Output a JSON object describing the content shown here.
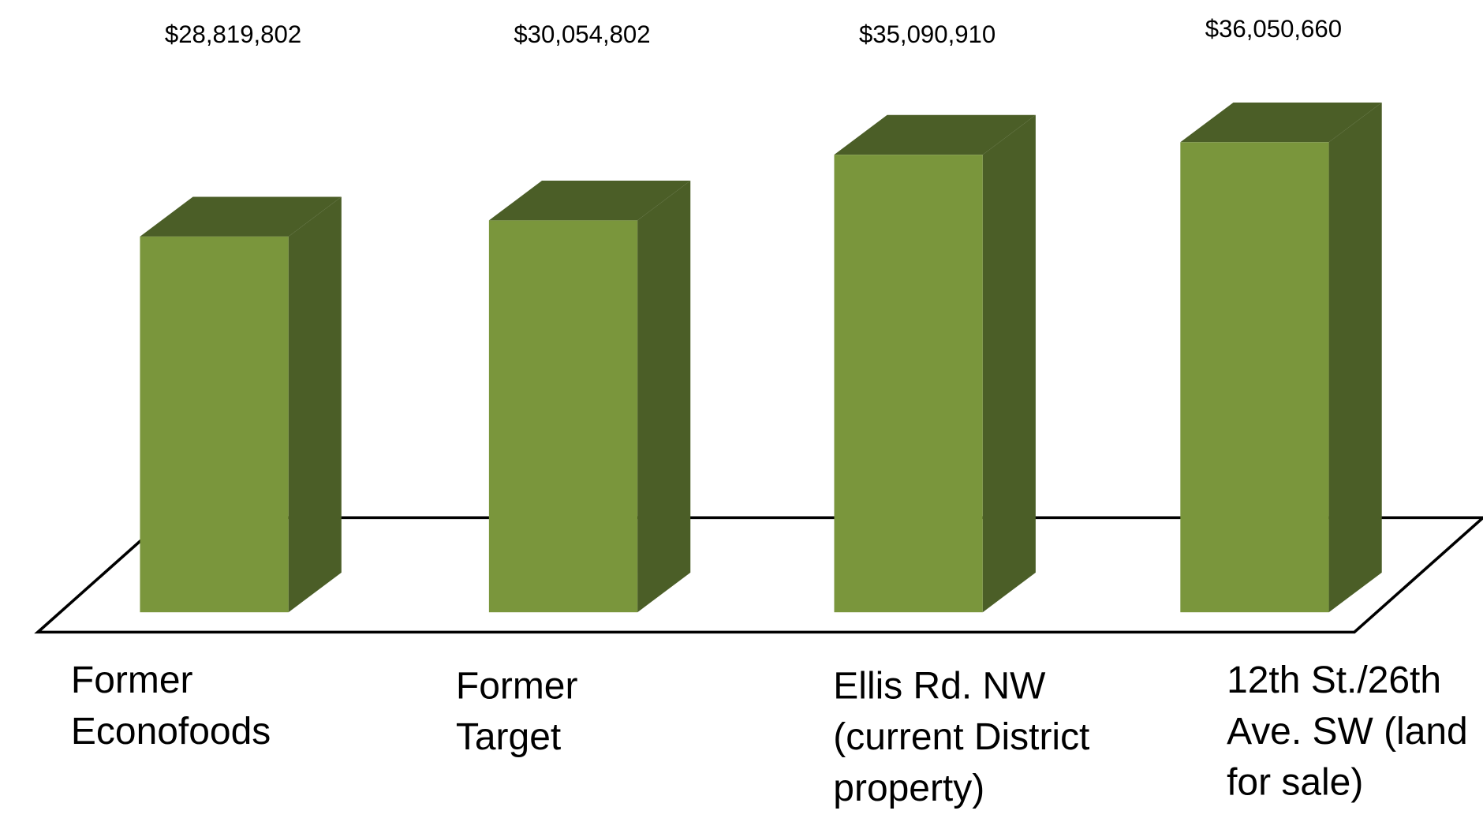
{
  "chart_data": {
    "type": "bar3d",
    "categories": [
      "Former Econofoods",
      "Former Target",
      "Ellis Rd. NW (current District property)",
      "12th St./26th Ave. SW (land for sale)"
    ],
    "values": [
      28819802,
      30054802,
      35090910,
      36050660
    ],
    "value_labels": [
      "$28,819,802",
      "$30,054,802",
      "$35,090,910",
      "$36,050,660"
    ],
    "color": "#7a963c",
    "side_color": "#4b5e27"
  }
}
